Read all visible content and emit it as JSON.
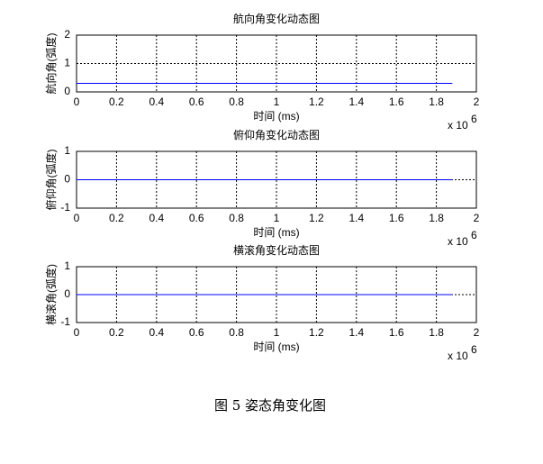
{
  "chart_data": [
    {
      "type": "line",
      "title": "航向角变化动态图",
      "xlabel": "时间 (ms)",
      "ylabel": "航向角(弧度)",
      "x": [
        0,
        1880000
      ],
      "values": [
        0.3,
        0.3
      ],
      "color": "#0000ff",
      "xlim": [
        0,
        2000000
      ],
      "ylim": [
        0,
        2
      ],
      "yticks": [
        0,
        1,
        2
      ],
      "xticks": [
        0,
        {
          "value": 200000,
          "label": "0.2"
        },
        {
          "value": 400000,
          "label": "0.4"
        },
        {
          "value": 600000,
          "label": "0.6"
        },
        {
          "value": 800000,
          "label": "0.8"
        },
        {
          "value": 1000000,
          "label": "1"
        },
        {
          "value": 1200000,
          "label": "1.2"
        },
        {
          "value": 1400000,
          "label": "1.4"
        },
        {
          "value": 1600000,
          "label": "1.6"
        },
        {
          "value": 1800000,
          "label": "1.8"
        },
        {
          "value": 2000000,
          "label": "2"
        }
      ],
      "x_multiplier": {
        "base": "x 10",
        "exponent": "6"
      },
      "grid": true
    },
    {
      "type": "line",
      "title": "俯仰角变化动态图",
      "xlabel": "时间 (ms)",
      "ylabel": "俯仰角(弧度)",
      "x": [
        0,
        1880000
      ],
      "values": [
        0,
        0
      ],
      "color": "#0000ff",
      "xlim": [
        0,
        2000000
      ],
      "ylim": [
        -1,
        1
      ],
      "yticks": [
        -1,
        0,
        1
      ],
      "xticks": [
        0,
        {
          "value": 200000,
          "label": "0.2"
        },
        {
          "value": 400000,
          "label": "0.4"
        },
        {
          "value": 600000,
          "label": "0.6"
        },
        {
          "value": 800000,
          "label": "0.8"
        },
        {
          "value": 1000000,
          "label": "1"
        },
        {
          "value": 1200000,
          "label": "1.2"
        },
        {
          "value": 1400000,
          "label": "1.4"
        },
        {
          "value": 1600000,
          "label": "1.6"
        },
        {
          "value": 1800000,
          "label": "1.8"
        },
        {
          "value": 2000000,
          "label": "2"
        }
      ],
      "x_multiplier": {
        "base": "x 10",
        "exponent": "6"
      },
      "grid": true
    },
    {
      "type": "line",
      "title": "横滚角变化动态图",
      "xlabel": "时间 (ms)",
      "ylabel": "横滚角(弧度)",
      "x": [
        0,
        1880000
      ],
      "values": [
        0,
        0
      ],
      "color": "#0000ff",
      "xlim": [
        0,
        2000000
      ],
      "ylim": [
        -1,
        1
      ],
      "yticks": [
        -1,
        0,
        1
      ],
      "xticks": [
        0,
        {
          "value": 200000,
          "label": "0.2"
        },
        {
          "value": 400000,
          "label": "0.4"
        },
        {
          "value": 600000,
          "label": "0.6"
        },
        {
          "value": 800000,
          "label": "0.8"
        },
        {
          "value": 1000000,
          "label": "1"
        },
        {
          "value": 1200000,
          "label": "1.2"
        },
        {
          "value": 1400000,
          "label": "1.4"
        },
        {
          "value": 1600000,
          "label": "1.6"
        },
        {
          "value": 1800000,
          "label": "1.8"
        },
        {
          "value": 2000000,
          "label": "2"
        }
      ],
      "x_multiplier": {
        "base": "x 10",
        "exponent": "6"
      },
      "grid": true
    }
  ],
  "caption": "图 5  姿态角变化图"
}
